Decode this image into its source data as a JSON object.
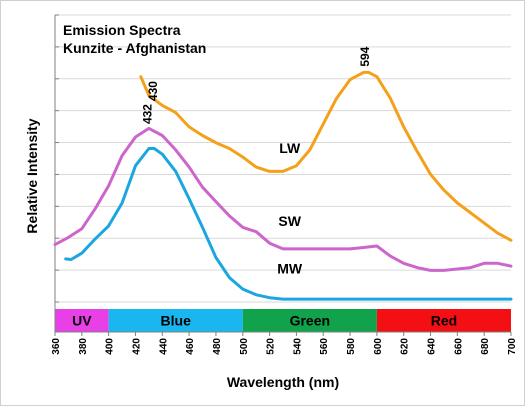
{
  "chart_data": {
    "type": "line",
    "title_lines": [
      "Emission Spectra",
      "Kunzite - Afghanistan"
    ],
    "xlabel": "Wavelength (nm)",
    "ylabel": "Relative Intensity",
    "xlim": [
      360,
      700
    ],
    "ylim": [
      0,
      100
    ],
    "x_ticks": [
      "360",
      "380",
      "400",
      "420",
      "440",
      "460",
      "480",
      "500",
      "520",
      "540",
      "560",
      "580",
      "600",
      "620",
      "640",
      "660",
      "680",
      "700"
    ],
    "grid": "horizontal",
    "colors": {
      "LW": "#f5a01a",
      "SW": "#cc66cc",
      "MW": "#1ba6e0"
    },
    "series": [
      {
        "name": "LW",
        "x": [
          424,
          430,
          440,
          450,
          460,
          470,
          480,
          490,
          500,
          510,
          520,
          530,
          540,
          550,
          560,
          570,
          580,
          590,
          594,
          600,
          610,
          620,
          630,
          640,
          650,
          660,
          670,
          680,
          690,
          700
        ],
        "values": [
          78.5,
          72,
          68.5,
          66,
          61,
          58,
          55.5,
          53.5,
          50.5,
          47,
          45.5,
          45.5,
          47.5,
          53,
          62,
          71,
          77.5,
          80,
          80,
          78.5,
          71,
          61,
          52.5,
          44.5,
          39,
          34.5,
          31,
          27.5,
          24,
          21.5
        ]
      },
      {
        "name": "SW",
        "x": [
          360,
          370,
          380,
          390,
          400,
          410,
          420,
          430,
          440,
          450,
          460,
          470,
          480,
          490,
          500,
          510,
          520,
          530,
          540,
          550,
          560,
          570,
          580,
          590,
          600,
          610,
          620,
          630,
          640,
          650,
          660,
          670,
          680,
          690,
          700
        ],
        "values": [
          20,
          22.5,
          25.5,
          32.5,
          40.5,
          51,
          57.5,
          60.5,
          58,
          53,
          47,
          40,
          35,
          30,
          26,
          24.5,
          20.5,
          18.5,
          18.5,
          18.5,
          18.5,
          18.5,
          18.5,
          19,
          19.5,
          16,
          13.5,
          12,
          11,
          11,
          11.5,
          12,
          13.5,
          13.5,
          12.5
        ]
      },
      {
        "name": "MW",
        "x": [
          368,
          372,
          380,
          390,
          400,
          410,
          420,
          430,
          434,
          440,
          450,
          460,
          470,
          480,
          490,
          500,
          510,
          520,
          530,
          540,
          560,
          580,
          600,
          620,
          640,
          660,
          680,
          700
        ],
        "values": [
          15,
          14.8,
          17,
          22,
          26.5,
          34.5,
          47.5,
          53.5,
          53.5,
          51.5,
          45.5,
          36,
          26,
          15.5,
          8.5,
          4.5,
          2.5,
          1.5,
          1,
          1,
          1,
          1,
          1,
          1,
          1,
          1,
          1,
          1
        ]
      }
    ],
    "series_labels": [
      {
        "name": "LW",
        "text": "LW",
        "x": 535,
        "y": 52
      },
      {
        "name": "SW",
        "text": "SW",
        "x": 535,
        "y": 26.5
      },
      {
        "name": "MW",
        "text": "MW",
        "x": 535,
        "y": 10
      }
    ],
    "peak_annotations": [
      {
        "text": "432",
        "x": 432,
        "y": 62,
        "rotate": true
      },
      {
        "text": "430",
        "x": 436,
        "y": 70,
        "rotate": true
      },
      {
        "text": "594",
        "x": 594,
        "y": 82,
        "rotate": true
      }
    ],
    "color_bands": [
      {
        "label": "UV",
        "start": 360,
        "end": 400,
        "color": "#e83fe6"
      },
      {
        "label": "Blue",
        "start": 400,
        "end": 500,
        "color": "#1ab6ef"
      },
      {
        "label": "Green",
        "start": 500,
        "end": 600,
        "color": "#10a34c"
      },
      {
        "label": "Red",
        "start": 600,
        "end": 700,
        "color": "#f40f14"
      }
    ]
  }
}
